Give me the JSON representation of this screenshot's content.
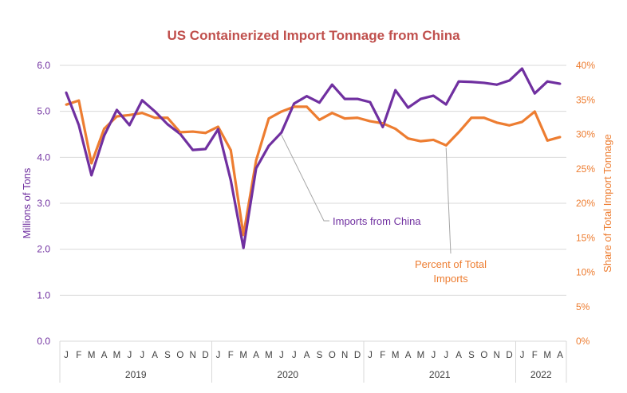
{
  "chart_data": {
    "type": "line",
    "title": "US Containerized Import Tonnage from China",
    "xlabel": "",
    "ylabel": "Millions of Tons",
    "y2label": "Share of Total Import Tonnage",
    "ylim": [
      0,
      6
    ],
    "y2lim": [
      0,
      40
    ],
    "yticks": [
      "0.0",
      "1.0",
      "2.0",
      "3.0",
      "4.0",
      "5.0",
      "6.0"
    ],
    "y2ticks": [
      "0%",
      "5%",
      "10%",
      "15%",
      "20%",
      "25%",
      "30%",
      "35%",
      "40%"
    ],
    "grid": true,
    "legend": "none (inline annotations)",
    "x": [
      "J",
      "F",
      "M",
      "A",
      "M",
      "J",
      "J",
      "A",
      "S",
      "O",
      "N",
      "D",
      "J",
      "F",
      "M",
      "A",
      "M",
      "J",
      "J",
      "A",
      "S",
      "O",
      "N",
      "D",
      "J",
      "F",
      "M",
      "A",
      "M",
      "J",
      "J",
      "A",
      "S",
      "O",
      "N",
      "D",
      "J",
      "F",
      "M",
      "A"
    ],
    "year_groups": [
      {
        "label": "2019",
        "months": 12
      },
      {
        "label": "2020",
        "months": 12
      },
      {
        "label": "2021",
        "months": 12
      },
      {
        "label": "2022",
        "months": 4
      }
    ],
    "series": [
      {
        "name": "Imports from China",
        "axis": "left",
        "units": "millions of tons",
        "color": "#7030a0",
        "values": [
          5.41,
          4.7,
          3.61,
          4.47,
          5.03,
          4.7,
          5.24,
          5.0,
          4.72,
          4.51,
          4.16,
          4.18,
          4.61,
          3.5,
          2.03,
          3.76,
          4.25,
          4.54,
          5.17,
          5.33,
          5.19,
          5.58,
          5.27,
          5.27,
          5.2,
          4.66,
          5.46,
          5.08,
          5.27,
          5.34,
          5.15,
          5.65,
          5.64,
          5.62,
          5.58,
          5.67,
          5.93,
          5.39,
          5.65,
          5.6
        ]
      },
      {
        "name": "Percent of Total Imports",
        "axis": "right",
        "units": "percent",
        "color": "#ed7d31",
        "values": [
          34.3,
          34.9,
          25.8,
          30.8,
          32.6,
          32.8,
          33.1,
          32.4,
          32.4,
          30.3,
          30.4,
          30.2,
          31.1,
          27.7,
          15.4,
          26.2,
          32.3,
          33.3,
          34.0,
          34.0,
          32.1,
          33.1,
          32.3,
          32.4,
          31.9,
          31.6,
          30.8,
          29.4,
          29.0,
          29.2,
          28.4,
          30.3,
          32.4,
          32.4,
          31.7,
          31.3,
          31.8,
          33.3,
          29.1,
          29.6
        ]
      }
    ],
    "annotations": [
      {
        "text": "Imports from China",
        "series": 0,
        "point_index": 17
      },
      {
        "text_lines": [
          "Percent of Total",
          "Imports"
        ],
        "series": 1,
        "point_index": 30
      }
    ]
  }
}
